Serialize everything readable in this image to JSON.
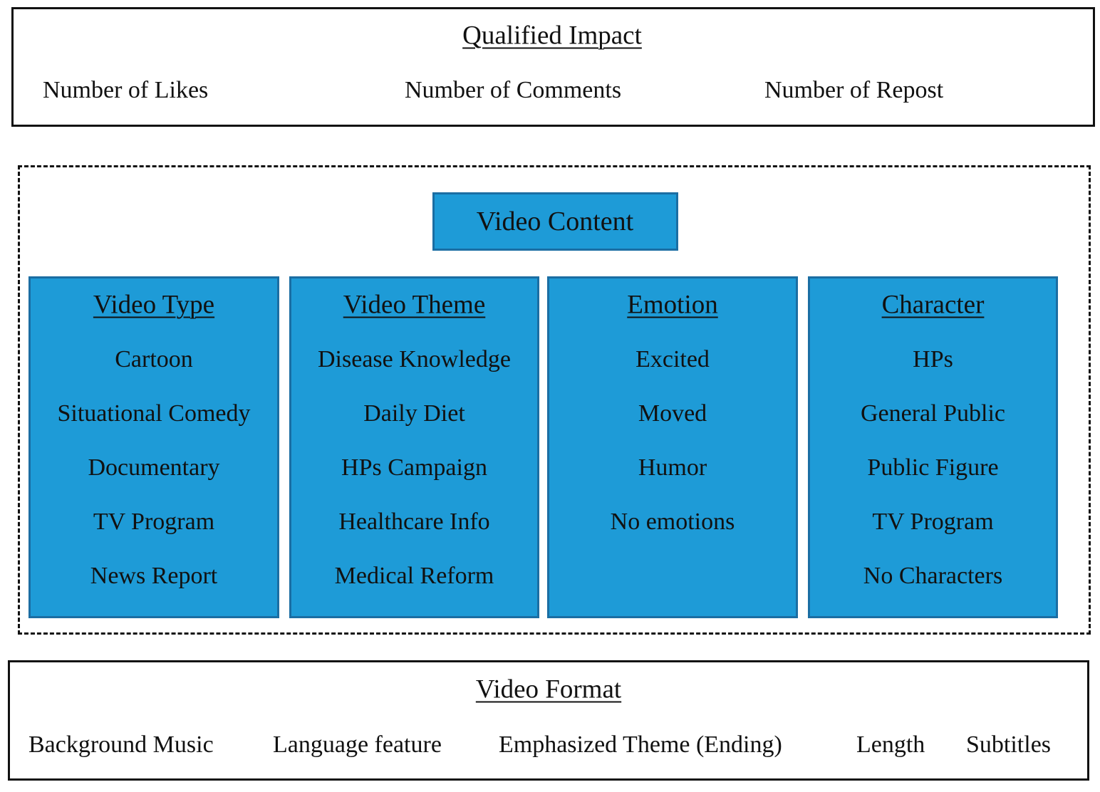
{
  "qualified_impact": {
    "title": "Qualified Impact",
    "items": [
      "Number of Likes",
      "Number of Comments",
      "Number of Repost"
    ]
  },
  "video_content": {
    "title": "Video Content",
    "columns": [
      {
        "title": "Video Type",
        "items": [
          "Cartoon",
          "Situational Comedy",
          "Documentary",
          "TV Program",
          "News Report"
        ]
      },
      {
        "title": "Video Theme",
        "items": [
          "Disease Knowledge",
          "Daily Diet",
          "HPs Campaign",
          "Healthcare Info",
          "Medical Reform"
        ]
      },
      {
        "title": "Emotion",
        "items": [
          "Excited",
          "Moved",
          "Humor",
          "No emotions"
        ]
      },
      {
        "title": "Character",
        "items": [
          "HPs",
          "General Public",
          "Public Figure",
          "TV Program",
          "No Characters"
        ]
      }
    ]
  },
  "video_format": {
    "title": "Video Format",
    "items": [
      "Background Music",
      "Language feature",
      "Emphasized Theme (Ending)",
      "Length",
      "Subtitles"
    ]
  }
}
